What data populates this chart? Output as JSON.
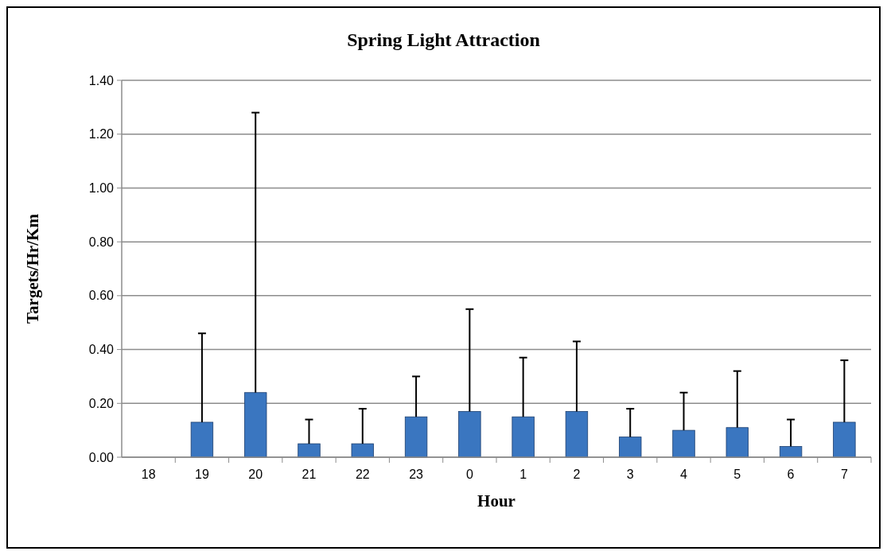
{
  "chart_data": {
    "type": "bar",
    "title": "Spring Light Attraction",
    "xlabel": "Hour",
    "ylabel": "Targets/Hr/Km",
    "categories": [
      "18",
      "19",
      "20",
      "21",
      "22",
      "23",
      "0",
      "1",
      "2",
      "3",
      "4",
      "5",
      "6",
      "7"
    ],
    "values": [
      0,
      0.13,
      0.24,
      0.05,
      0.05,
      0.15,
      0.17,
      0.15,
      0.17,
      0.075,
      0.1,
      0.11,
      0.04,
      0.13
    ],
    "errors": [
      null,
      [
        0.13,
        0.46
      ],
      [
        0.24,
        1.28
      ],
      [
        0.05,
        0.14
      ],
      [
        0.05,
        0.18
      ],
      [
        0.15,
        0.3
      ],
      [
        0.17,
        0.55
      ],
      [
        0.15,
        0.37
      ],
      [
        0.17,
        0.43
      ],
      [
        0.075,
        0.18
      ],
      [
        0.1,
        0.24
      ],
      [
        0.11,
        0.32
      ],
      [
        0.04,
        0.14
      ],
      [
        0.13,
        0.36
      ]
    ],
    "color": "#3a76c0",
    "ylim": [
      0,
      1.4
    ],
    "yticks": [
      {
        "value": 0,
        "label": "0.00"
      },
      {
        "value": 0.2,
        "label": "0.20"
      },
      {
        "value": 0.4,
        "label": "0.40"
      },
      {
        "value": 0.6,
        "label": "0.60"
      },
      {
        "value": 0.8,
        "label": "0.80"
      },
      {
        "value": 1,
        "label": "1.00"
      },
      {
        "value": 1.2,
        "label": "1.20"
      },
      {
        "value": 1.4,
        "label": "1.40"
      }
    ],
    "grid": "y"
  }
}
